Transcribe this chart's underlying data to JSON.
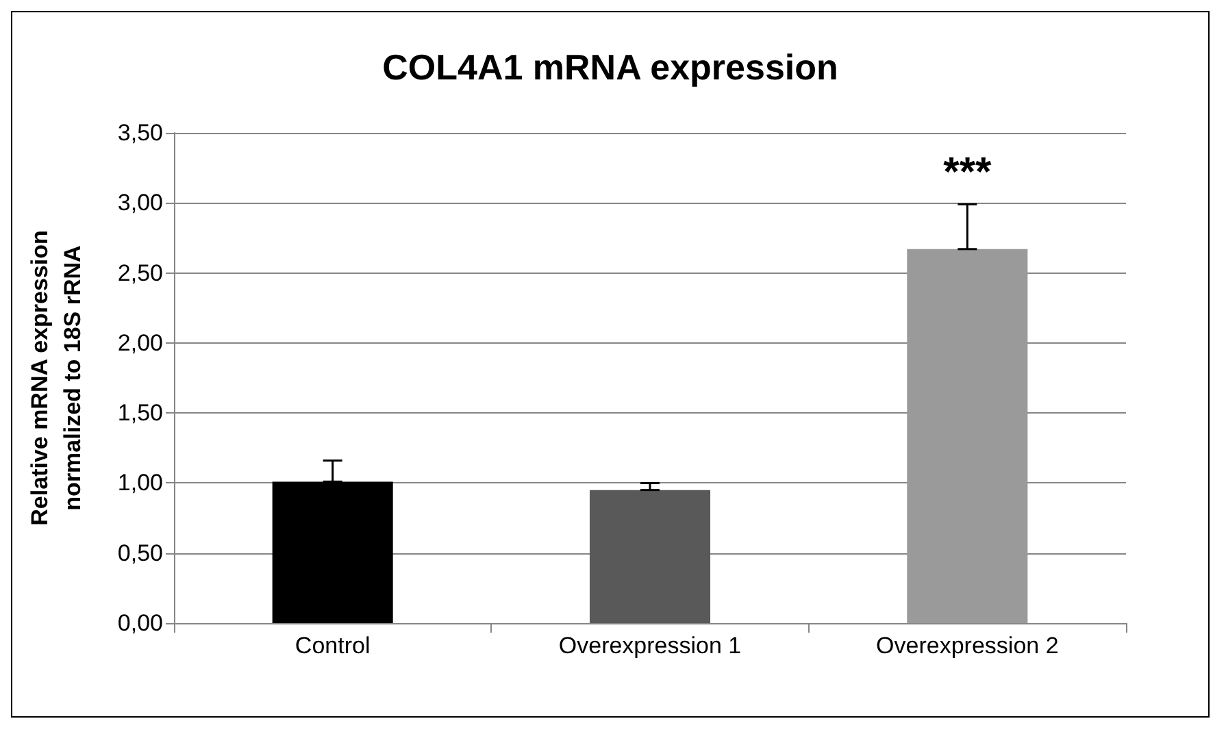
{
  "chart_data": {
    "type": "bar",
    "title": "COL4A1 mRNA expression",
    "ylabel": "Relative mRNA expression\nnormalized to 18S rRNA",
    "categories": [
      "Control",
      "Overexpression 1",
      "Overexpression 2"
    ],
    "values": [
      1.01,
      0.95,
      2.67
    ],
    "colors": [
      "#000000",
      "#595959",
      "#9a9a9a"
    ],
    "errors": [
      [
        1.01,
        1.16
      ],
      [
        0.95,
        1.0
      ],
      [
        2.67,
        2.99
      ]
    ],
    "ylim": [
      0,
      3.5
    ],
    "yticks": [
      {
        "value": 0,
        "label": "0,00"
      },
      {
        "value": 0.5,
        "label": "0,50"
      },
      {
        "value": 1,
        "label": "1,00"
      },
      {
        "value": 1.5,
        "label": "1,50"
      },
      {
        "value": 2,
        "label": "2,00"
      },
      {
        "value": 2.5,
        "label": "2,50"
      },
      {
        "value": 3,
        "label": "3,00"
      },
      {
        "value": 3.5,
        "label": "3,50"
      }
    ],
    "grid": "y",
    "annotations": [
      "***"
    ]
  }
}
